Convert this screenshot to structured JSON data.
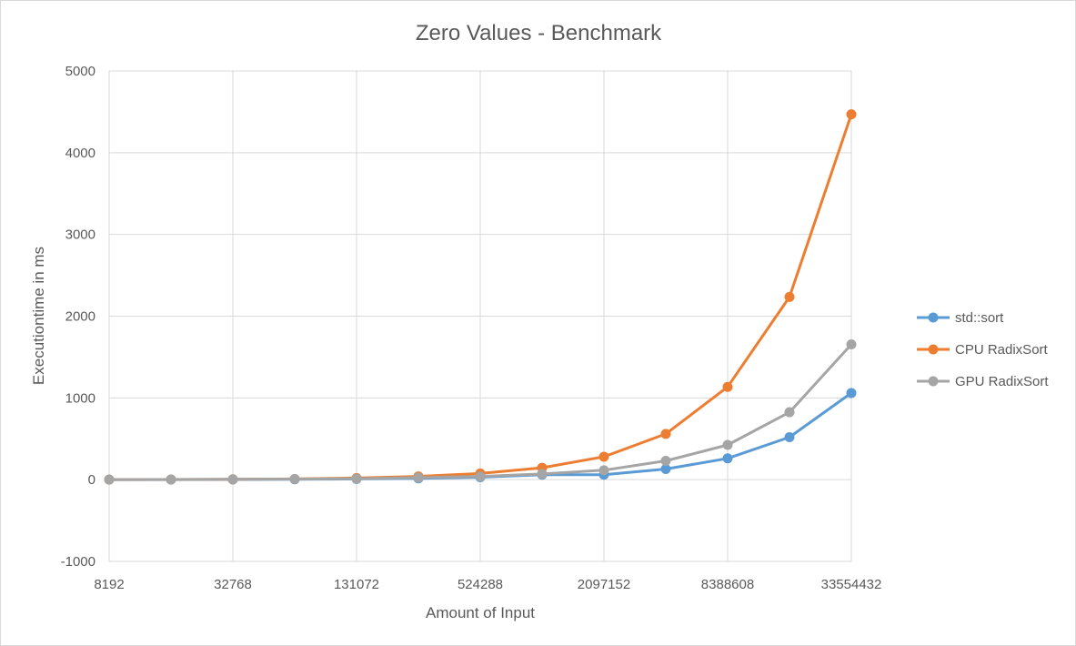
{
  "chart_data": {
    "type": "line",
    "title": "Zero Values - Benchmark",
    "xlabel": "Amount of Input",
    "ylabel": "Executiontime in ms",
    "x": [
      8192,
      16384,
      32768,
      65536,
      131072,
      262144,
      524288,
      1048576,
      2097152,
      4194304,
      8388608,
      16777216,
      33554432
    ],
    "x_tick_labels": [
      "8192",
      "32768",
      "131072",
      "524288",
      "2097152",
      "8388608",
      "33554432"
    ],
    "x_scale": "log2",
    "ylim": [
      -1000,
      5000
    ],
    "y_tick_labels": [
      "-1000",
      "0",
      "1000",
      "2000",
      "3000",
      "4000",
      "5000"
    ],
    "grid": true,
    "legend_position": "right",
    "series": [
      {
        "name": "std::sort",
        "color": "#5b9bd5",
        "values": [
          0.5,
          1,
          2,
          4,
          8,
          16,
          30,
          60,
          60,
          130,
          260,
          520,
          1060
        ]
      },
      {
        "name": "CPU RadixSort",
        "color": "#ed7d31",
        "values": [
          1,
          2,
          4,
          8,
          20,
          40,
          75,
          145,
          280,
          560,
          1135,
          2235,
          4470
        ]
      },
      {
        "name": "GPU RadixSort",
        "color": "#a5a5a5",
        "values": [
          1,
          2,
          4,
          7,
          12,
          25,
          40,
          70,
          115,
          230,
          425,
          825,
          1655
        ]
      }
    ]
  }
}
